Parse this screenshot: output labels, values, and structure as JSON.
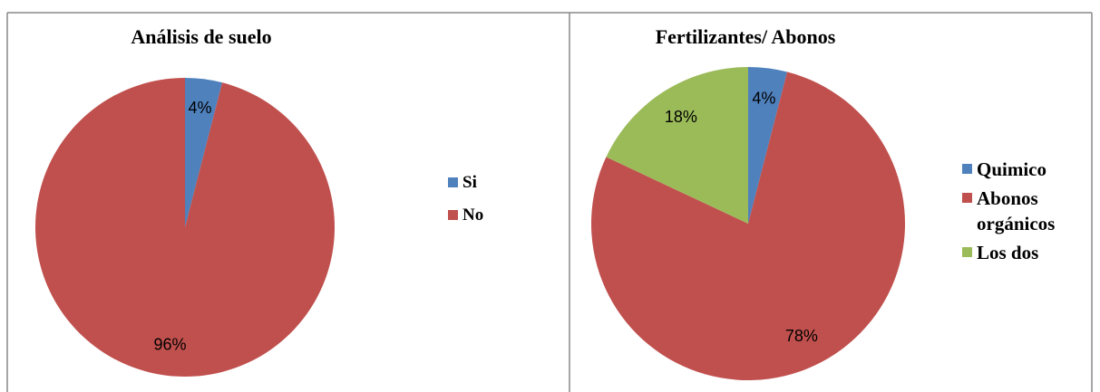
{
  "chart_data": [
    {
      "type": "pie",
      "title": "Análisis de suelo",
      "categories": [
        "Si",
        "No"
      ],
      "values": [
        4,
        96
      ],
      "value_labels": [
        "4%",
        "96%"
      ],
      "colors": [
        "#4f81bd",
        "#c0504d"
      ]
    },
    {
      "type": "pie",
      "title": "Fertilizantes/ Abonos",
      "categories": [
        "Quimico",
        "Abonos orgánicos",
        "Los dos"
      ],
      "values": [
        4,
        78,
        18
      ],
      "value_labels": [
        "4%",
        "78%",
        "18%"
      ],
      "colors": [
        "#4f81bd",
        "#c0504d",
        "#9bbb59"
      ]
    }
  ]
}
